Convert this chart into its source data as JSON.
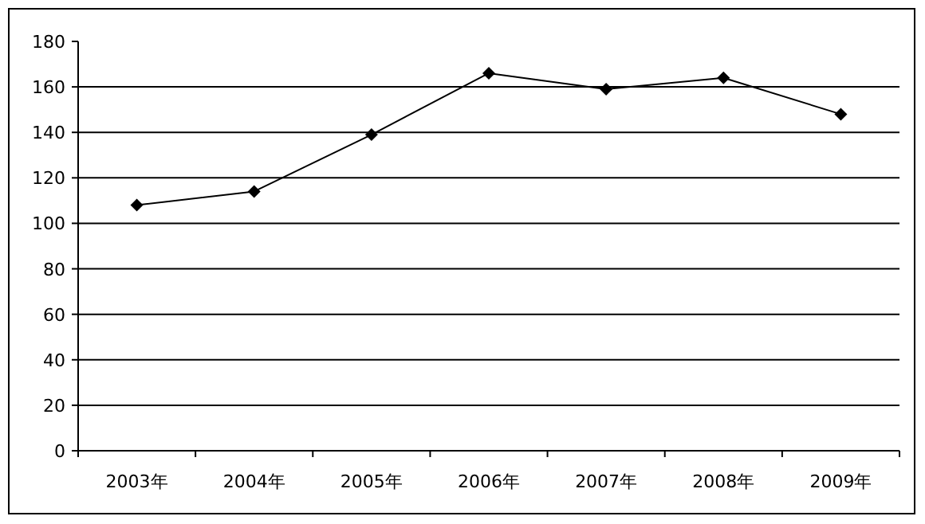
{
  "chart_data": {
    "type": "line",
    "categories": [
      "2003年",
      "2004年",
      "2005年",
      "2006年",
      "2007年",
      "2008年",
      "2009年"
    ],
    "series": [
      {
        "color": "#000000",
        "values": [
          108,
          114,
          139,
          166,
          159,
          164,
          148
        ]
      }
    ],
    "ylim": [
      0,
      180
    ],
    "yticks": [
      0,
      20,
      40,
      60,
      80,
      100,
      120,
      140,
      160,
      180
    ],
    "grid": "y",
    "marker": "diamond",
    "line_style": "solid"
  }
}
